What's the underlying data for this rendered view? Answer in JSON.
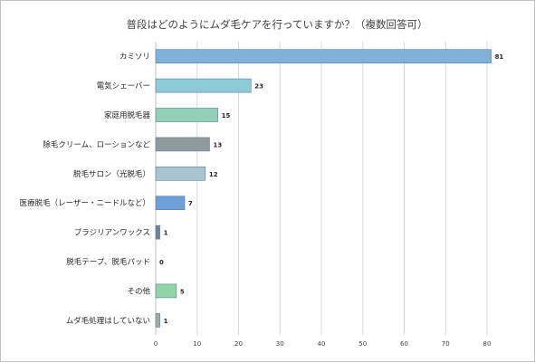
{
  "chart_data": {
    "type": "bar",
    "orientation": "horizontal",
    "title": "普段はどのようにムダ毛ケアを行っていますか？（複数回答可）",
    "categories": [
      "カミソリ",
      "電気シェーバー",
      "家庭用脱毛器",
      "除毛クリーム、ローションなど",
      "脱毛サロン（光脱毛）",
      "医療脱毛（レーザー・ニードルなど）",
      "ブラジリアンワックス",
      "脱毛テープ、脱毛パッド",
      "その他",
      "ムダ毛処理はしていない"
    ],
    "values": [
      81,
      23,
      15,
      13,
      12,
      7,
      1,
      0,
      5,
      1
    ],
    "bar_colors": [
      "#7fb2d6",
      "#8ecad7",
      "#8fd0b6",
      "#8e9a9d",
      "#a9c3cf",
      "#6f9fd8",
      "#6e8496",
      "#9aa3a8",
      "#91d5a6",
      "#a3aaa7"
    ],
    "xlim": [
      0,
      80
    ],
    "xticks": [
      0,
      10,
      20,
      30,
      40,
      50,
      60,
      70,
      80
    ],
    "xlabel": "",
    "ylabel": "",
    "grid": true,
    "legend": "none"
  }
}
